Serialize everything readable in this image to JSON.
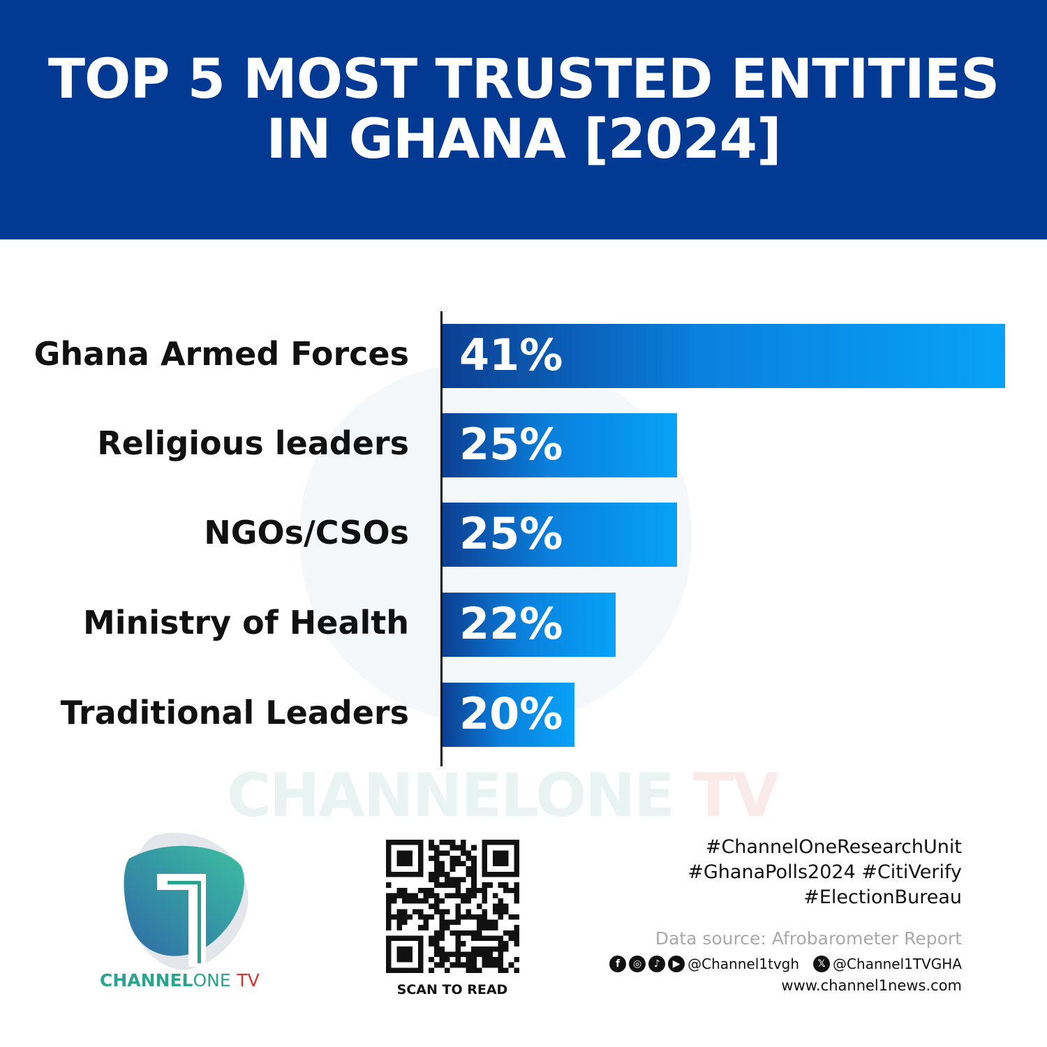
{
  "header": {
    "title_line1": "TOP 5 MOST TRUSTED ENTITIES",
    "title_line2": "IN GHANA [2024]"
  },
  "chart_data": {
    "type": "bar",
    "orientation": "horizontal",
    "title": "TOP 5 MOST TRUSTED ENTITIES IN GHANA [2024]",
    "categories": [
      "Ghana Armed Forces",
      "Religious leaders",
      "NGOs/CSOs",
      "Ministry of Health",
      "Traditional Leaders"
    ],
    "values": [
      41,
      25,
      25,
      22,
      20
    ],
    "value_labels": [
      "41%",
      "25%",
      "25%",
      "22%",
      "20%"
    ],
    "unit": "%",
    "grid": false,
    "colors": {
      "bar_start": "#0c3f92",
      "bar_end": "#07a3f8"
    }
  },
  "watermark": {
    "part1": "CHANNELONE",
    "part2": "TV"
  },
  "logo": {
    "text_bold": "CHANNEL",
    "text_light": "ONE",
    "text_tv": "TV",
    "colors": {
      "teal": "#2aa38f",
      "red": "#d8322f"
    }
  },
  "qr": {
    "label": "SCAN TO READ"
  },
  "footer": {
    "hashtags": [
      "#ChannelOneResearchUnit",
      "#GhanaPolls2024 #CitiVerify",
      "#ElectionBureau"
    ],
    "source": "Data source: Afrobarometer Report",
    "social_icons": [
      "facebook-icon",
      "instagram-icon",
      "tiktok-icon",
      "youtube-icon"
    ],
    "handle1": "@Channel1tvgh",
    "x_icon": "x-icon",
    "handle2": "@Channel1TVGHA",
    "website": "www.channel1news.com"
  }
}
